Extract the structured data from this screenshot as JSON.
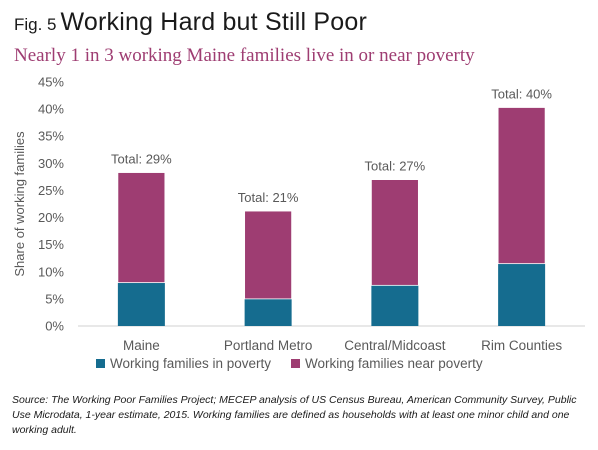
{
  "header": {
    "fig_label": "Fig. 5",
    "title": "Working Hard but Still Poor",
    "subtitle": "Nearly 1 in 3 working Maine families live in or near poverty"
  },
  "colors": {
    "in_poverty": "#156c8f",
    "near_poverty": "#9e3d72",
    "axis_text": "#595959",
    "subtitle": "#9e3d72"
  },
  "chart_data": {
    "type": "bar",
    "stacked": true,
    "categories": [
      "Maine",
      "Portland Metro",
      "Central/Midcoast",
      "Rim Counties"
    ],
    "series": [
      {
        "name": "Working families in poverty",
        "values": [
          8,
          5,
          7.5,
          11.5
        ],
        "color": "#156c8f"
      },
      {
        "name": "Working families near poverty",
        "values": [
          20.3,
          16.2,
          19.5,
          28.8
        ],
        "color": "#9e3d72"
      }
    ],
    "totals": [
      "Total: 29%",
      "Total: 21%",
      "Total: 27%",
      "Total: 40%"
    ],
    "ylabel": "Share of working families",
    "xlabel": "",
    "ylim": [
      0,
      45
    ],
    "yticks": [
      "0%",
      "5%",
      "10%",
      "15%",
      "20%",
      "25%",
      "30%",
      "35%",
      "40%",
      "45%"
    ],
    "grid": false,
    "legend_position": "bottom"
  },
  "source": "Source: The Working Poor Families Project; MECEP analysis of US Census Bureau, American Community Survey, Public Use Microdata, 1-year estimate, 2015. Working families are defined as households with at least one minor child and one working adult."
}
